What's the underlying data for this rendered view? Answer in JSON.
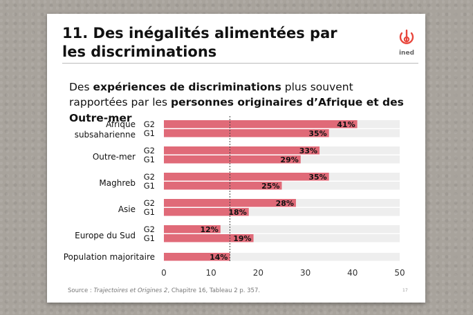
{
  "slide": {
    "title": "11. Des inégalités alimentées par les discriminations",
    "logo_text": "ined",
    "subtitle": {
      "part1": "Des ",
      "bold1": "expériences de discriminations",
      "part2": " plus souvent rapportées par les ",
      "bold2": "personnes originaires d’Afrique et des Outre-mer"
    },
    "source": {
      "prefix": "Source : ",
      "work": "Trajectoires et Origines 2",
      "suffix": ", Chapitre 16, Tableau 2 p. 357."
    },
    "page_number": "17"
  },
  "chart_data": {
    "type": "bar",
    "orientation": "horizontal",
    "groups": [
      {
        "label": "Afrique subsaharienne",
        "rows": [
          {
            "gen": "G2",
            "value": 41,
            "label": "41%"
          },
          {
            "gen": "G1",
            "value": 35,
            "label": "35%"
          }
        ]
      },
      {
        "label": "Outre-mer",
        "rows": [
          {
            "gen": "G2",
            "value": 33,
            "label": "33%"
          },
          {
            "gen": "G1",
            "value": 29,
            "label": "29%"
          }
        ]
      },
      {
        "label": "Maghreb",
        "rows": [
          {
            "gen": "G2",
            "value": 35,
            "label": "35%"
          },
          {
            "gen": "G1",
            "value": 25,
            "label": "25%"
          }
        ]
      },
      {
        "label": "Asie",
        "rows": [
          {
            "gen": "G2",
            "value": 28,
            "label": "28%"
          },
          {
            "gen": "G1",
            "value": 18,
            "label": "18%"
          }
        ]
      },
      {
        "label": "Europe du Sud",
        "rows": [
          {
            "gen": "G2",
            "value": 12,
            "label": "12%"
          },
          {
            "gen": "G1",
            "value": 19,
            "label": "19%"
          }
        ]
      },
      {
        "label": "Population majoritaire",
        "rows": [
          {
            "gen": "",
            "value": 14,
            "label": "14%"
          }
        ]
      }
    ],
    "xlim": [
      0,
      50
    ],
    "xticks": [
      0,
      10,
      20,
      30,
      40,
      50
    ],
    "reference_line": 14,
    "bar_color": "#e06a78",
    "track_color": "#eeeeee"
  }
}
